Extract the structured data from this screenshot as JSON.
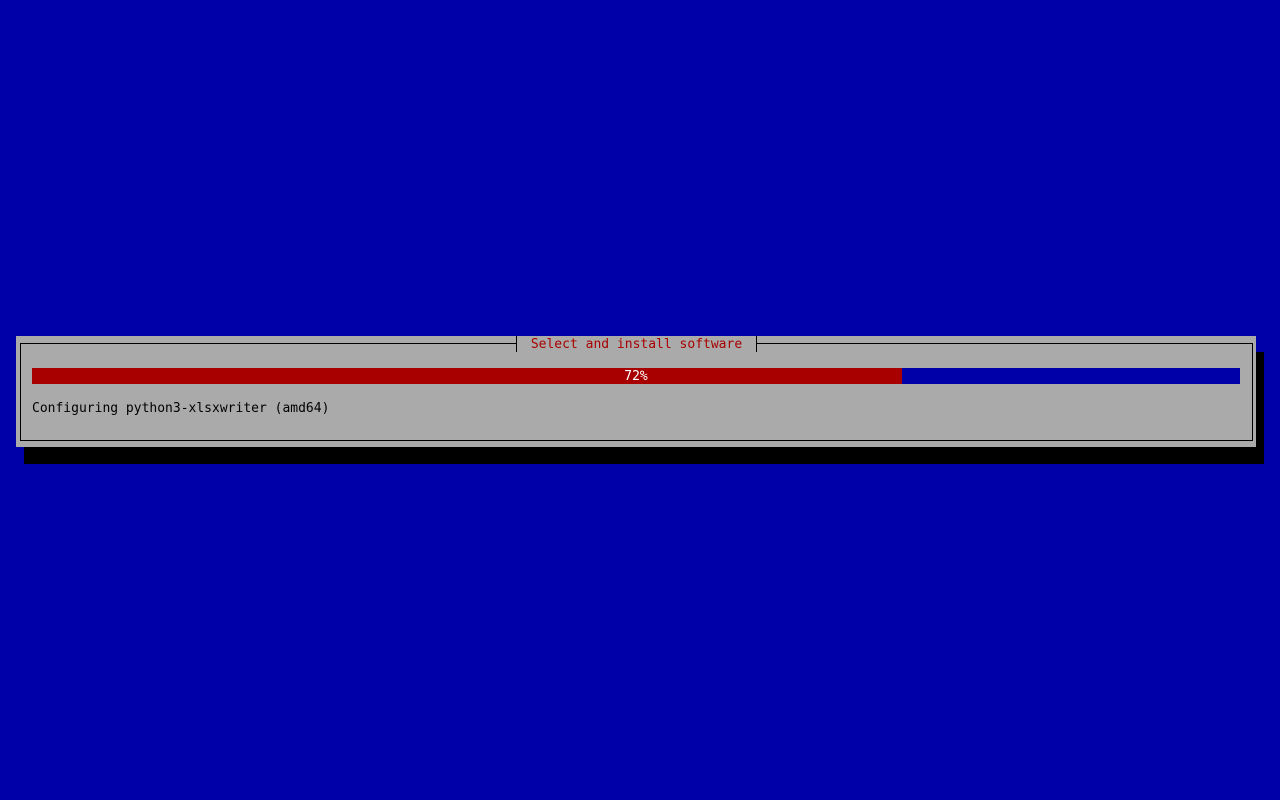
{
  "dialog": {
    "title": "Select and install software",
    "progress_percent": 72,
    "progress_label": "72%",
    "status_text": "Configuring python3-xlsxwriter (amd64)"
  },
  "colors": {
    "background": "#0000a8",
    "dialog": "#aaaaaa",
    "progress_fill": "#a80000",
    "title_text": "#a80000"
  }
}
